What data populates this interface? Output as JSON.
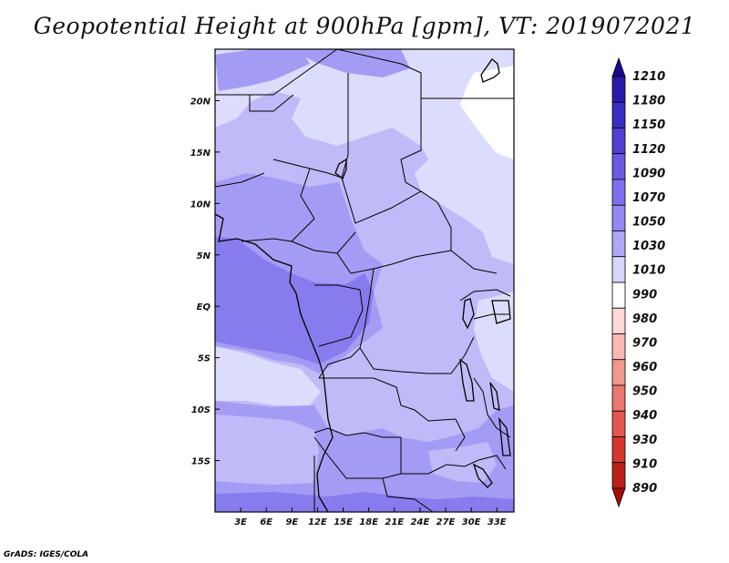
{
  "title": "Geopotential Height at 900hPa [gpm], VT: 2019072021",
  "footer": "GrADS: IGES/COLA",
  "map": {
    "lon_range": [
      0,
      35
    ],
    "lat_range": [
      -20,
      25
    ],
    "x_ticks": [
      "3E",
      "6E",
      "9E",
      "12E",
      "15E",
      "18E",
      "21E",
      "24E",
      "27E",
      "30E",
      "33E"
    ],
    "x_tick_values": [
      3,
      6,
      9,
      12,
      15,
      18,
      21,
      24,
      27,
      30,
      33
    ],
    "y_ticks": [
      "20N",
      "15N",
      "10N",
      "5N",
      "EQ",
      "5S",
      "10S",
      "15S"
    ],
    "y_tick_values": [
      20,
      15,
      10,
      5,
      0,
      -5,
      -10,
      -15
    ]
  },
  "colorbar": {
    "labels": [
      "1210",
      "1180",
      "1150",
      "1120",
      "1090",
      "1070",
      "1050",
      "1030",
      "1010",
      "990",
      "980",
      "970",
      "960",
      "950",
      "940",
      "930",
      "910",
      "890"
    ],
    "colors": [
      "#1a0a8c",
      "#2a1aa8",
      "#3a2ec0",
      "#5040d0",
      "#6a5ae0",
      "#8070ec",
      "#9488f2",
      "#b0a8f6",
      "#d8d6fb",
      "#ffffff",
      "#ffd8d8",
      "#f8b8b4",
      "#f09890",
      "#e87870",
      "#e05850",
      "#d03830",
      "#b82018",
      "#a01008"
    ]
  },
  "colors": {
    "c1010": "#dcdcfc",
    "c1030": "#c0baf8",
    "c1050": "#a49cf4",
    "c1070": "#877cee"
  }
}
